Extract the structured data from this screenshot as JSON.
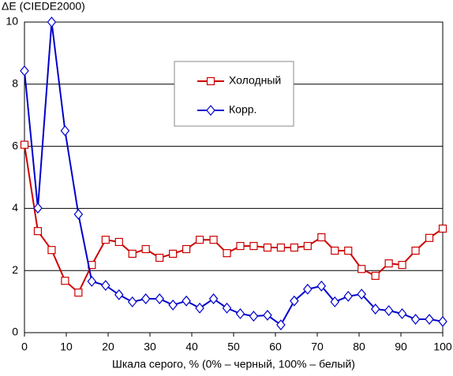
{
  "chart_data": {
    "type": "line",
    "ylabel": "ΔE (CIEDE2000)",
    "xlabel": "Шкала серого, % (0% – черный, 100% – белый)",
    "x": [
      0,
      3.2,
      6.5,
      9.7,
      12.9,
      16.1,
      19.4,
      22.6,
      25.8,
      29,
      32.3,
      35.5,
      38.7,
      41.9,
      45.2,
      48.4,
      51.6,
      54.8,
      58.1,
      61.3,
      64.5,
      67.7,
      71,
      74.2,
      77.4,
      80.6,
      83.9,
      87.1,
      90.3,
      93.5,
      96.8,
      100
    ],
    "series": [
      {
        "name": "Холодный",
        "color": "#cc0000",
        "marker": "square",
        "values": [
          6.05,
          3.27,
          2.66,
          1.67,
          1.29,
          2.18,
          2.99,
          2.92,
          2.54,
          2.69,
          2.41,
          2.54,
          2.69,
          2.99,
          2.99,
          2.56,
          2.79,
          2.79,
          2.74,
          2.74,
          2.74,
          2.79,
          3.07,
          2.64,
          2.64,
          2.05,
          1.83,
          2.23,
          2.18,
          2.64,
          3.05,
          3.35
        ]
      },
      {
        "name": "Корр.",
        "color": "#0000cc",
        "marker": "diamond",
        "values": [
          8.43,
          4.01,
          10,
          6.5,
          3.81,
          1.65,
          1.52,
          1.22,
          0.99,
          1.09,
          1.09,
          0.89,
          1.02,
          0.79,
          1.09,
          0.79,
          0.61,
          0.53,
          0.56,
          0.25,
          1.02,
          1.4,
          1.5,
          0.99,
          1.17,
          1.24,
          0.76,
          0.71,
          0.61,
          0.43,
          0.43,
          0.36
        ]
      }
    ],
    "xlim": [
      0,
      100
    ],
    "xticks": [
      0,
      10,
      20,
      30,
      40,
      50,
      60,
      70,
      80,
      90,
      100
    ],
    "ylim": [
      0,
      10
    ],
    "yticks": [
      0,
      2,
      4,
      6,
      8,
      10
    ],
    "grid": true
  }
}
